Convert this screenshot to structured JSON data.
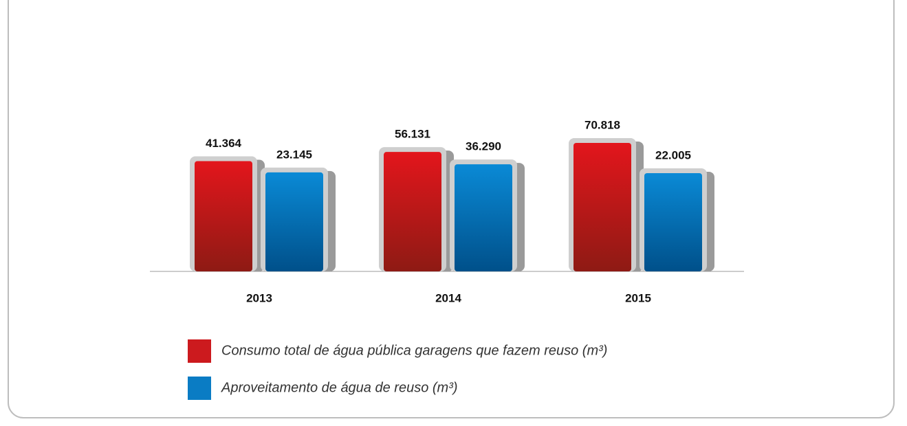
{
  "chart_data": {
    "type": "bar",
    "categories": [
      "2013",
      "2014",
      "2015"
    ],
    "series": [
      {
        "name": "Consumo total de água pública garagens que fazem reuso (m³)",
        "color": "#cc1a1e",
        "values": [
          41364,
          56131,
          70818
        ],
        "value_labels": [
          "41.364",
          "56.131",
          "70.818"
        ]
      },
      {
        "name": "Aproveitamento de água de reuso (m³)",
        "color": "#0a7cc4",
        "values": [
          23145,
          36290,
          22005
        ],
        "value_labels": [
          "23.145",
          "36.290",
          "22.005"
        ]
      }
    ],
    "ylim": [
      -136700,
      135100
    ]
  }
}
